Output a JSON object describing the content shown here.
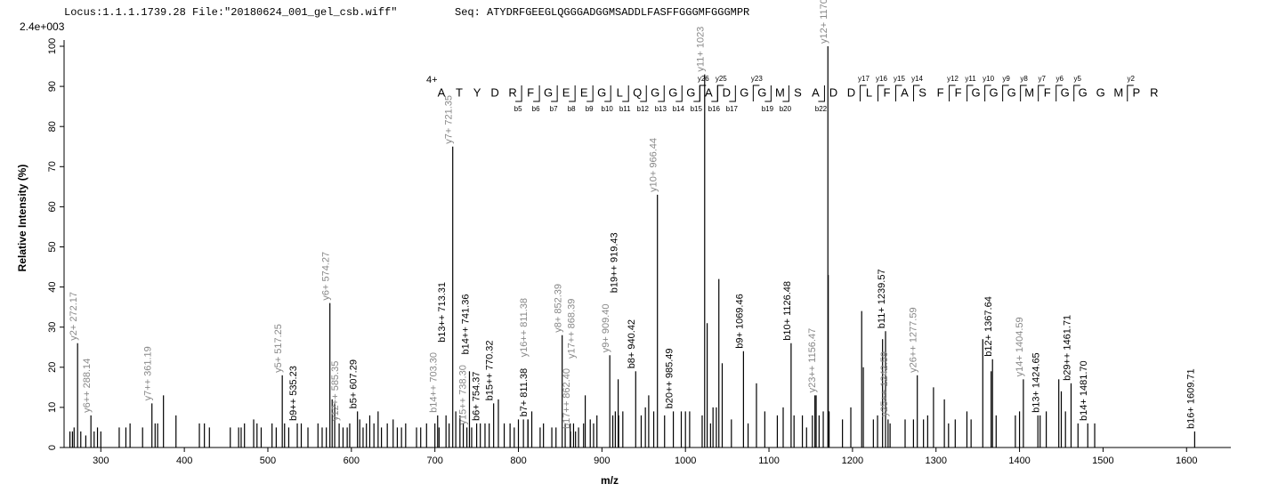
{
  "chart_data": {
    "type": "stem",
    "header": "Locus:1.1.1.1739.28 File:\"20180624_001_gel_csb.wiff\"",
    "sequence_header": "Seq: ATYDRFGEEGLQGGGADGGMSADDLFASFFGGGMFGGGMPR",
    "scale_label": "2.4e+003",
    "ylabel": "Relative   Intensity (%)",
    "xlabel": "m/z",
    "xlim": [
      256,
      1653
    ],
    "ylim": [
      0,
      100
    ],
    "xticks": [
      300,
      400,
      500,
      600,
      700,
      800,
      900,
      1000,
      1100,
      1200,
      1300,
      1400,
      1500,
      1600
    ],
    "yticks": [
      0,
      10,
      20,
      30,
      40,
      50,
      60,
      70,
      80,
      90,
      100
    ],
    "peak_color": "#000000",
    "peaks": {
      "x": [
        263,
        266,
        268,
        276,
        282,
        292,
        296,
        300,
        322,
        330,
        335,
        350,
        365,
        368,
        375,
        390,
        418,
        424,
        430,
        455,
        465,
        468,
        472,
        483,
        487,
        492,
        505,
        510,
        520,
        525,
        540,
        548,
        560,
        565,
        570,
        577,
        580,
        590,
        595,
        598,
        610,
        614,
        618,
        622,
        627,
        632,
        636,
        643,
        650,
        655,
        660,
        665,
        678,
        683,
        690,
        700,
        705,
        717,
        725,
        730,
        734,
        744,
        750,
        760,
        765,
        776,
        783,
        790,
        795,
        800,
        806,
        816,
        826,
        830,
        840,
        845,
        856,
        862,
        866,
        872,
        878,
        880,
        886,
        890,
        894,
        913,
        916,
        920,
        925,
        947,
        952,
        956,
        962,
        975,
        995,
        1000,
        1005,
        1020,
        1026,
        1030,
        1033,
        1037,
        1040,
        1044,
        1055,
        1075,
        1085,
        1095,
        1110,
        1117,
        1130,
        1140,
        1145,
        1152,
        1155,
        1160,
        1165,
        1171,
        1172,
        1188,
        1198,
        1211,
        1213,
        1225,
        1230,
        1236,
        1245,
        1263,
        1273,
        1285,
        1290,
        1297,
        1310,
        1315,
        1323,
        1337,
        1342,
        1356,
        1366,
        1372,
        1395,
        1400,
        1422,
        1432,
        1447,
        1450,
        1455,
        1470,
        1490
      ],
      "values": [
        4,
        4,
        5,
        4,
        3,
        4,
        5,
        4,
        5,
        5,
        6,
        5,
        6,
        6,
        13,
        8,
        6,
        6,
        5,
        5,
        5,
        5,
        6,
        7,
        6,
        5,
        6,
        5,
        6,
        5,
        6,
        5,
        6,
        5,
        5,
        12,
        11,
        5,
        5,
        6,
        7,
        5,
        6,
        8,
        6,
        9,
        5,
        6,
        7,
        5,
        5,
        6,
        5,
        5,
        6,
        6,
        5,
        6,
        9,
        8,
        6,
        5,
        6,
        6,
        6,
        12,
        6,
        6,
        5,
        7,
        7,
        9,
        5,
        6,
        5,
        5,
        6,
        6,
        6,
        5,
        6,
        13,
        7,
        6,
        8,
        8,
        9,
        8,
        9,
        8,
        10,
        13,
        9,
        8,
        9,
        9,
        9,
        8,
        31,
        6,
        10,
        10,
        42,
        21,
        7,
        6,
        16,
        9,
        8,
        10,
        8,
        8,
        5,
        8,
        13,
        8,
        9,
        43,
        9,
        7,
        10,
        34,
        20,
        7,
        8,
        27,
        6,
        7,
        7,
        7,
        8,
        15,
        12,
        6,
        7,
        9,
        7,
        27,
        19,
        8,
        8,
        9,
        8,
        9,
        17,
        14,
        9,
        6,
        6
      ]
    },
    "labeled_peaks": [
      {
        "label": "y2+ 272.17",
        "x": 272.17,
        "value": 26,
        "color": "#888888"
      },
      {
        "label": "y6++ 288.14",
        "x": 288.14,
        "value": 8,
        "color": "#888888"
      },
      {
        "label": "y7++ 361.19",
        "x": 361.19,
        "value": 11,
        "color": "#888888"
      },
      {
        "label": "y5+ 517.25",
        "x": 517.25,
        "value": 18,
        "color": "#888888"
      },
      {
        "label": "b9++ 535.23",
        "x": 535.23,
        "value": 6,
        "color": "#000000"
      },
      {
        "label": "y6+ 574.27",
        "x": 574.27,
        "value": 36,
        "color": "#888888"
      },
      {
        "label": "y12++ 585.35",
        "x": 585.35,
        "value": 6,
        "color": "#888888"
      },
      {
        "label": "b5+ 607.29",
        "x": 607.29,
        "value": 9,
        "color": "#000000"
      },
      {
        "label": "b14++ 703.30",
        "x": 703.3,
        "value": 8,
        "color": "#888888"
      },
      {
        "label": "b13++ 713.31",
        "x": 713.31,
        "value": 8,
        "color": "#000000"
      },
      {
        "label": "y7+ 721.35",
        "x": 721.35,
        "value": 75,
        "color": "#888888"
      },
      {
        "label": "y15++ 738.30",
        "x": 738.3,
        "value": 5,
        "color": "#888888"
      },
      {
        "label": "b14++ 741.36",
        "x": 741.36,
        "value": 19,
        "color": "#000000"
      },
      {
        "label": "b6+ 754.37",
        "x": 754.37,
        "value": 6,
        "color": "#000000"
      },
      {
        "label": "b15++ 770.32",
        "x": 770.32,
        "value": 11,
        "color": "#000000"
      },
      {
        "label": "b7+ 811.38",
        "x": 811.38,
        "value": 7,
        "color": "#000000"
      },
      {
        "label": "y16++ 811.38",
        "x": 811.38,
        "value": 7,
        "color": "#888888"
      },
      {
        "label": "y8+ 852.39",
        "x": 852.39,
        "value": 28,
        "color": "#888888"
      },
      {
        "label": "b17++ 862.40",
        "x": 862.4,
        "value": 4,
        "color": "#888888"
      },
      {
        "label": "y17++ 868.39",
        "x": 868.39,
        "value": 4,
        "color": "#888888"
      },
      {
        "label": "y9+ 909.40",
        "x": 909.4,
        "value": 23,
        "color": "#888888"
      },
      {
        "label": "b19++ 919.43",
        "x": 919.43,
        "value": 17,
        "color": "#000000"
      },
      {
        "label": "b8+ 940.42",
        "x": 940.42,
        "value": 19,
        "color": "#000000"
      },
      {
        "label": "y10+ 966.44",
        "x": 966.44,
        "value": 63,
        "color": "#888888"
      },
      {
        "label": "b20++ 985.49",
        "x": 985.49,
        "value": 9,
        "color": "#000000"
      },
      {
        "label": "y11+ 1023",
        "x": 1023,
        "value": 93,
        "color": "#888888"
      },
      {
        "label": "b9+ 1069.46",
        "x": 1069.46,
        "value": 24,
        "color": "#000000"
      },
      {
        "label": "b10+ 1126.48",
        "x": 1126.48,
        "value": 26,
        "color": "#000000"
      },
      {
        "label": "y23++ 1156.47",
        "x": 1156.47,
        "value": 13,
        "color": "#888888"
      },
      {
        "label": "y12+ 1170.54",
        "x": 1170.54,
        "value": 100,
        "color": "#888888"
      },
      {
        "label": "b11+ 1239.57",
        "x": 1239.57,
        "value": 29,
        "color": "#000000"
      },
      {
        "label": "y25++ 1242.59",
        "x": 1242.59,
        "value": 7,
        "color": "#888888"
      },
      {
        "label": "y26++ 1277.59",
        "x": 1277.59,
        "value": 18,
        "color": "#888888"
      },
      {
        "label": "b12+ 1367.64",
        "x": 1367.64,
        "value": 22,
        "color": "#000000"
      },
      {
        "label": "y14+ 1404.59",
        "x": 1404.59,
        "value": 17,
        "color": "#888888"
      },
      {
        "label": "b13+ 1424.65",
        "x": 1424.65,
        "value": 8,
        "color": "#000000"
      },
      {
        "label": "b29++ 1461.71",
        "x": 1461.71,
        "value": 16,
        "color": "#000000"
      },
      {
        "label": "b14+ 1481.70",
        "x": 1481.7,
        "value": 6,
        "color": "#000000"
      },
      {
        "label": "b16+ 1609.71",
        "x": 1609.71,
        "value": 4,
        "color": "#000000"
      }
    ],
    "fragment_map": {
      "charge": "4+",
      "residues": [
        "A",
        "T",
        "Y",
        "D",
        "R",
        "F",
        "G",
        "E",
        "E",
        "G",
        "L",
        "Q",
        "G",
        "G",
        "G",
        "A",
        "D",
        "G",
        "G",
        "M",
        "S",
        "A",
        "D",
        "D",
        "L",
        "F",
        "A",
        "S",
        "F",
        "F",
        "G",
        "G",
        "G",
        "M",
        "F",
        "G",
        "G",
        "G",
        "M",
        "P",
        "R"
      ],
      "b_ions": [
        "b5",
        "b6",
        "b7",
        "b8",
        "b9",
        "b10",
        "b11",
        "b12",
        "b13",
        "b14",
        "b15",
        "b16",
        "b17",
        "b19",
        "b20",
        "b22"
      ],
      "y_ions": [
        "y26",
        "y25",
        "y23",
        "y17",
        "y16",
        "y15",
        "y14",
        "y12",
        "y11",
        "y10",
        "y9",
        "y8",
        "y7",
        "y6",
        "y5",
        "y2"
      ]
    }
  }
}
